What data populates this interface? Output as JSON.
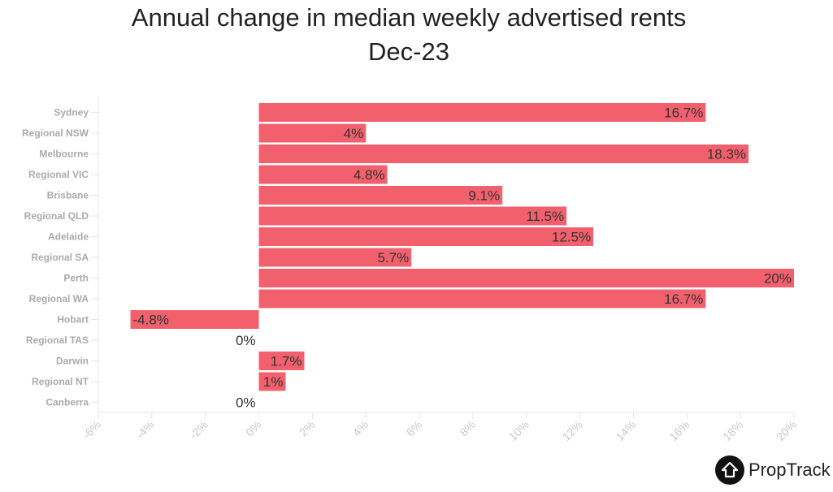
{
  "chart_data": {
    "type": "bar",
    "orientation": "horizontal",
    "title": "Annual change in median weekly advertised rents",
    "subtitle": "Dec-23",
    "categories": [
      "Sydney",
      "Regional NSW",
      "Melbourne",
      "Regional VIC",
      "Brisbane",
      "Regional QLD",
      "Adelaide",
      "Regional SA",
      "Perth",
      "Regional WA",
      "Hobart",
      "Regional TAS",
      "Darwin",
      "Regional NT",
      "Canberra"
    ],
    "values": [
      16.7,
      4,
      18.3,
      4.8,
      9.1,
      11.5,
      12.5,
      5.7,
      20,
      16.7,
      -4.8,
      0,
      1.7,
      1,
      0
    ],
    "xlim": [
      -6,
      20
    ],
    "xticks": [
      -6,
      -4,
      -2,
      0,
      2,
      4,
      6,
      8,
      10,
      12,
      14,
      16,
      18,
      20
    ],
    "tick_suffix": "%",
    "xlabel": "",
    "ylabel": "",
    "bar_color": "#f2606e",
    "grid": false,
    "legend": "none"
  },
  "brand": {
    "name": "PropTrack"
  }
}
